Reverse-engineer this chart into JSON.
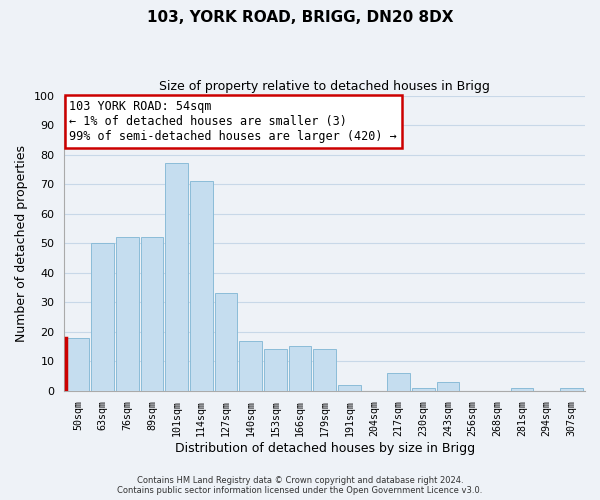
{
  "title_line1": "103, YORK ROAD, BRIGG, DN20 8DX",
  "title_line2": "Size of property relative to detached houses in Brigg",
  "xlabel": "Distribution of detached houses by size in Brigg",
  "ylabel": "Number of detached properties",
  "categories": [
    "50sqm",
    "63sqm",
    "76sqm",
    "89sqm",
    "101sqm",
    "114sqm",
    "127sqm",
    "140sqm",
    "153sqm",
    "166sqm",
    "179sqm",
    "191sqm",
    "204sqm",
    "217sqm",
    "230sqm",
    "243sqm",
    "256sqm",
    "268sqm",
    "281sqm",
    "294sqm",
    "307sqm"
  ],
  "values": [
    18,
    50,
    52,
    52,
    77,
    71,
    33,
    17,
    14,
    15,
    14,
    2,
    0,
    6,
    1,
    3,
    0,
    0,
    1,
    0,
    1
  ],
  "bar_color": "#c5ddef",
  "bar_edge_color": "#8bbcd8",
  "highlight_bar_index": 0,
  "highlight_edge_color": "#cc0000",
  "annotation_text": "103 YORK ROAD: 54sqm\n← 1% of detached houses are smaller (3)\n99% of semi-detached houses are larger (420) →",
  "annotation_box_color": "white",
  "annotation_box_edge_color": "#cc0000",
  "ylim": [
    0,
    100
  ],
  "yticks": [
    0,
    10,
    20,
    30,
    40,
    50,
    60,
    70,
    80,
    90,
    100
  ],
  "footer_line1": "Contains HM Land Registry data © Crown copyright and database right 2024.",
  "footer_line2": "Contains public sector information licensed under the Open Government Licence v3.0.",
  "grid_color": "#c8d8e8",
  "background_color": "#eef2f7"
}
